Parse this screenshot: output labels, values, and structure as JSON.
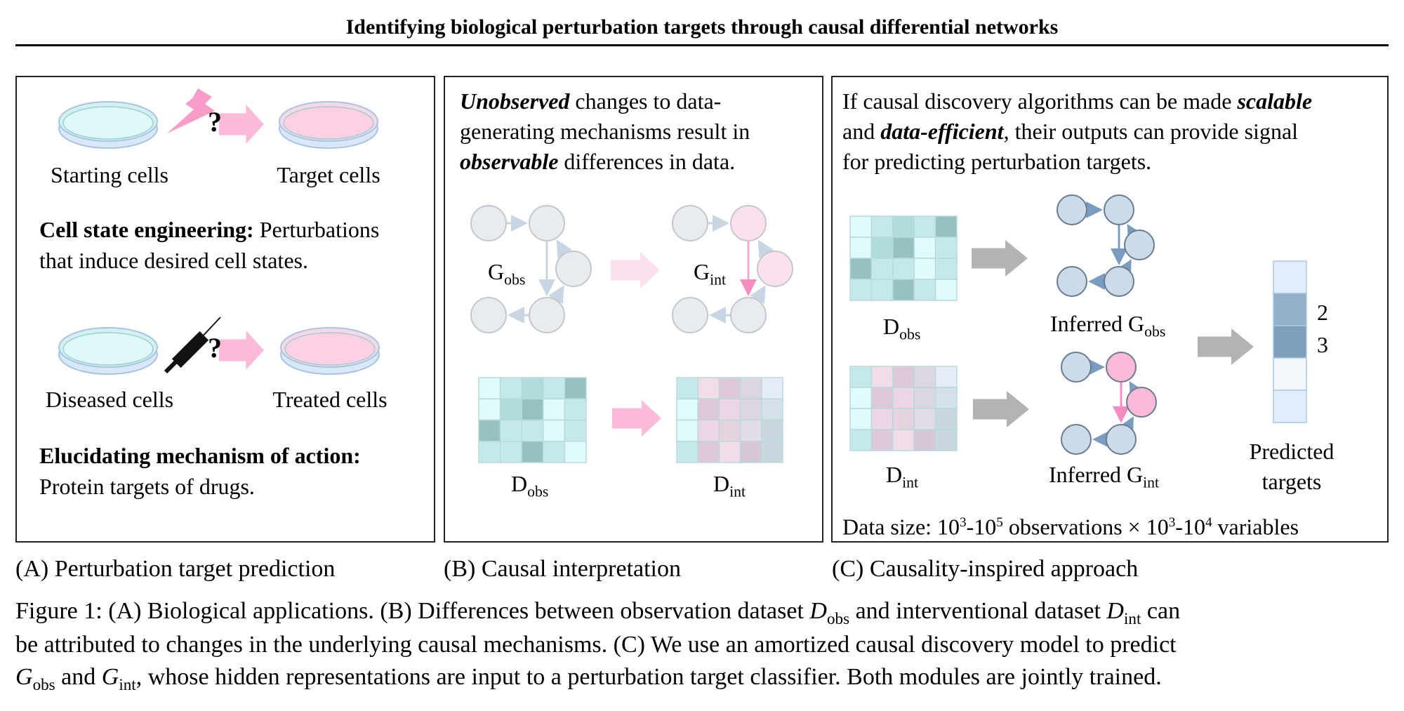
{
  "title": "Identifying biological perturbation targets through causal differential networks",
  "panel_a": {
    "starting_cells": "Starting cells",
    "target_cells": "Target cells",
    "question_mark": "?",
    "app1_bold": "Cell state engineering:",
    "app1_line1": "Perturbations",
    "app1_line2": "that induce desired cell states.",
    "diseased_cells": "Diseased cells",
    "treated_cells": "Treated cells",
    "app2_bold": "Elucidating mechanism of action:",
    "app2_line2": "Protein targets of drugs.",
    "label": "(A) Perturbation target prediction"
  },
  "panel_b": {
    "line1_em": "Unobserved",
    "line1_rest": "changes to data-",
    "line2": "generating mechanisms result in",
    "line3_em": "observable",
    "line3_rest": "differences in data.",
    "g": "G",
    "obs": "obs",
    "int": "int",
    "d": "D",
    "label": "(B) Causal interpretation"
  },
  "panel_c": {
    "line1": "If causal discovery algorithms can be made",
    "line1_em": "scalable",
    "line2_a": "and",
    "line2_em": "data-efficient",
    "line2_rest": ", their outputs can provide signal",
    "line3": "for predicting perturbation targets.",
    "inferred": "Inferred G",
    "obs": "obs",
    "int": "int",
    "d": "D",
    "target_2": "2",
    "target_3": "3",
    "predicted_1": "Predicted",
    "predicted_2": "targets",
    "data_size_a": "Data size: 10",
    "exp1": "3",
    "dash1": "-10",
    "exp2": "5",
    "data_size_b": " observations × 10",
    "exp3": "3",
    "dash2": "-10",
    "exp4": "4",
    "data_size_c": " variables",
    "label": "(C) Causality-inspired approach"
  },
  "caption": {
    "l1a": "Figure 1: (A) Biological applications. (B) Differences between observation dataset ",
    "D": "D",
    "obs": "obs",
    "int": "int",
    "G": "G",
    "l1b": " and interventional dataset ",
    "l1c": " can",
    "l2": "be attributed to changes in the underlying causal mechanisms. (C) We use an amortized causal discovery model to predict",
    "l3a": " and ",
    "l3b": ", whose hidden representations are input to a perturbation target classifier. Both modules are jointly trained."
  },
  "colors": {
    "d_obs_grid": [
      [
        "#e0fbfc",
        "#c5e8ea",
        "#b0dcde",
        "#c5e8ea",
        "#97c1c1"
      ],
      [
        "#e0fbfc",
        "#b0dcde",
        "#97c1c1",
        "#e0fbfc",
        "#c5e8ea"
      ],
      [
        "#97c1c1",
        "#c5e8ea",
        "#c5e8ea",
        "#e0fbfc",
        "#c5e8ea"
      ],
      [
        "#c5e8ea",
        "#c5e8ea",
        "#97c1c1",
        "#c5e8ea",
        "#e0fbfc"
      ]
    ],
    "d_int_grid": [
      [
        "#c5e8ea",
        "#f0dde9",
        "#dcc8d9",
        "#dcd6e3",
        "#e6ecf5"
      ],
      [
        "#e0fbfc",
        "#dcc8d9",
        "#ecd6e6",
        "#dcd6e3",
        "#d5e0e8"
      ],
      [
        "#e0fbfc",
        "#ecd6e6",
        "#e6d3e0",
        "#e3dbe8",
        "#c9d8df"
      ],
      [
        "#c5e8ea",
        "#dcc8d9",
        "#f0dde9",
        "#d6c6d6",
        "#c9d8df"
      ]
    ],
    "target_bar": [
      "#e0eefc",
      "#94b0c8",
      "#7f9fbb",
      "#f4f8fd",
      "#e0eefc"
    ],
    "pink": "#fbbad8",
    "node_blue": "#ccdbe8",
    "node_gray": "#e8ecf0"
  }
}
